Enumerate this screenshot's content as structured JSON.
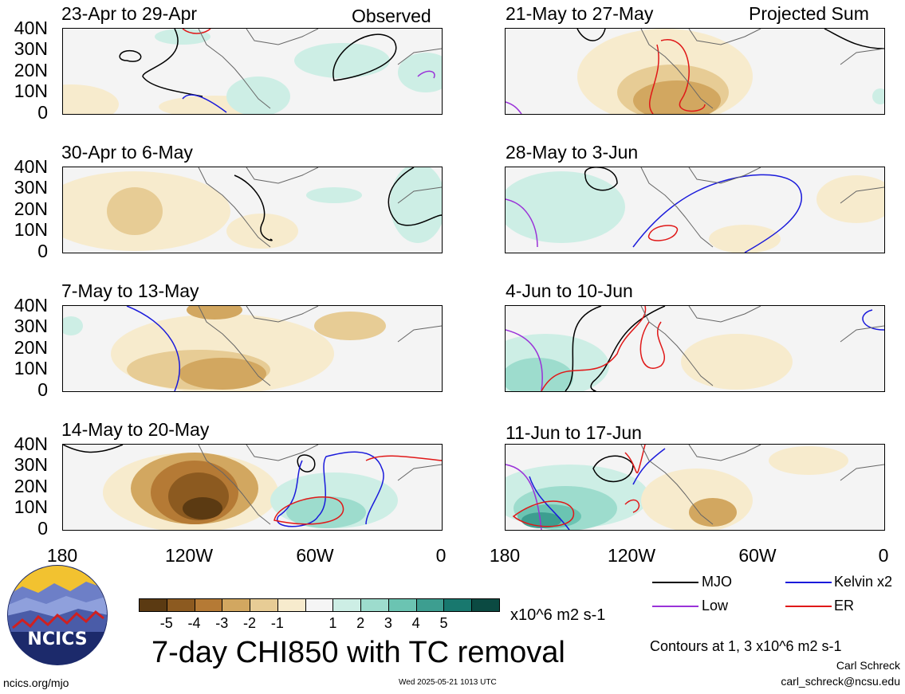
{
  "panels": [
    {
      "title": "23-Apr to 29-Apr",
      "label": "Observed"
    },
    {
      "title": "30-Apr to 6-May",
      "label": ""
    },
    {
      "title": "7-May to 13-May",
      "label": ""
    },
    {
      "title": "14-May to 20-May",
      "label": ""
    },
    {
      "title": "21-May to 27-May",
      "label": "Projected Sum"
    },
    {
      "title": "28-May to 3-Jun",
      "label": ""
    },
    {
      "title": "4-Jun to 10-Jun",
      "label": ""
    },
    {
      "title": "11-Jun to 17-Jun",
      "label": ""
    }
  ],
  "y_ticks": [
    "40N",
    "30N",
    "20N",
    "10N",
    "0"
  ],
  "x_ticks": [
    "180",
    "120W",
    "60W",
    "0"
  ],
  "colorbar": {
    "colors": [
      "#5b3a12",
      "#8c5a20",
      "#b57a35",
      "#d2a760",
      "#e7cc95",
      "#f7ebcd",
      "#f5f5f5",
      "#cdeee5",
      "#9ddccd",
      "#6bc4b2",
      "#3d9e90",
      "#18786e",
      "#0b4a42"
    ],
    "labels": [
      "-5",
      "-4",
      "-3",
      "-2",
      "-1",
      "1",
      "2",
      "3",
      "4",
      "5"
    ],
    "units": "x10^6 m2 s-1"
  },
  "main_title": "7-day CHI850 with TC removal",
  "legend": [
    {
      "name": "MJO",
      "color": "#000000"
    },
    {
      "name": "Kelvin x2",
      "color": "#1a1adb"
    },
    {
      "name": "Low",
      "color": "#9a32d8"
    },
    {
      "name": "ER",
      "color": "#e01818"
    }
  ],
  "contour_note": "Contours at 1, 3 x10^6 m2 s-1",
  "author": "Carl Schreck",
  "email": "carl_schreck@ncsu.edu",
  "url": "ncics.org/mjo",
  "timestamp": "Wed 2025-05-21 1013 UTC",
  "logo_text": "NCICS"
}
